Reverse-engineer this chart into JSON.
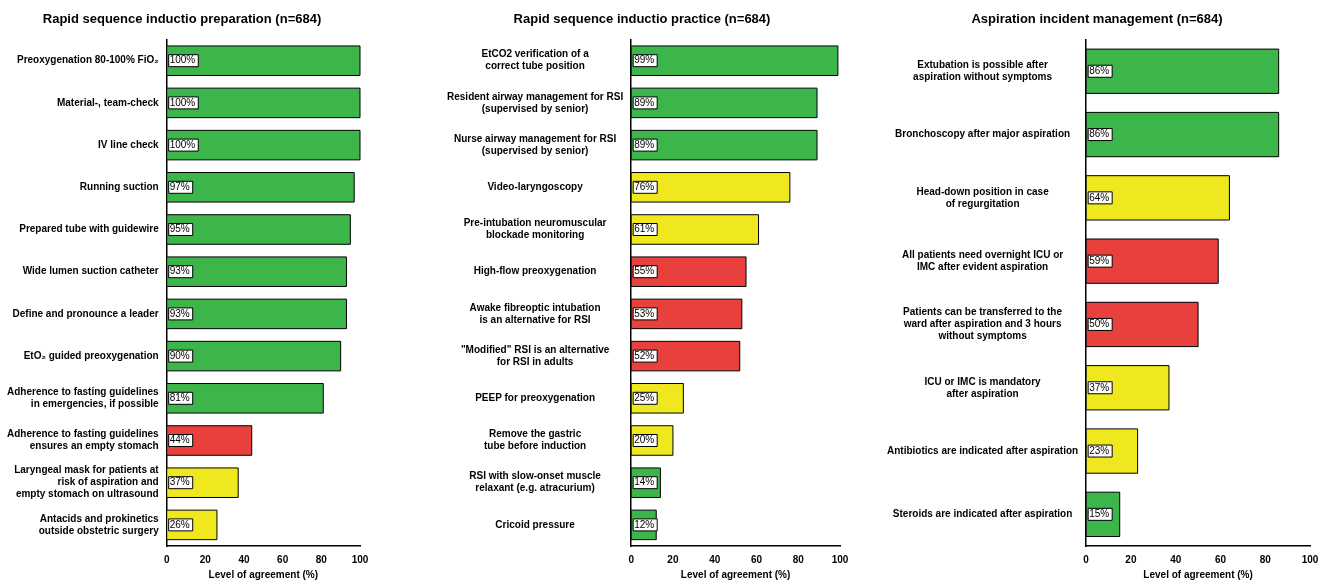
{
  "chart_data": [
    {
      "type": "bar",
      "orientation": "horizontal",
      "title": "Rapid sequence inductio preparation (n=684)",
      "xlabel": "Level of agreement (%)",
      "xlim": [
        0,
        100
      ],
      "xticks": [
        0,
        20,
        40,
        60,
        80,
        100
      ],
      "grid": false,
      "legend": false,
      "categories": [
        "Preoxygenation 80-100% FiO₂",
        "Material-, team-check",
        "IV line check",
        "Running suction",
        "Prepared tube with guidewire",
        "Wide lumen suction catheter",
        "Define and pronounce a leader",
        "EtO₂ guided preoxygenation",
        "Adherence to fasting guidelines\nin emergencies, if possible",
        "Adherence to fasting guidelines\nensures an empty stomach",
        "Laryngeal mask for patients at\nrisk of aspiration and\nempty stomach on ultrasound",
        "Antacids and prokinetics\noutside obstetric surgery"
      ],
      "values": [
        100,
        100,
        100,
        97,
        95,
        93,
        93,
        90,
        81,
        44,
        37,
        26
      ],
      "value_labels": [
        "100%",
        "100%",
        "100%",
        "97%",
        "95%",
        "93%",
        "93%",
        "90%",
        "81%",
        "44%",
        "37%",
        "26%"
      ],
      "colors": [
        "#3cb54a",
        "#3cb54a",
        "#3cb54a",
        "#3cb54a",
        "#3cb54a",
        "#3cb54a",
        "#3cb54a",
        "#3cb54a",
        "#3cb54a",
        "#e8403c",
        "#f0e81e",
        "#f0e81e"
      ]
    },
    {
      "type": "bar",
      "orientation": "horizontal",
      "title": "Rapid sequence inductio practice (n=684)",
      "xlabel": "Level of agreement (%)",
      "xlim": [
        0,
        100
      ],
      "xticks": [
        0,
        20,
        40,
        60,
        80,
        100
      ],
      "grid": false,
      "legend": false,
      "categories": [
        "EtCO2 verification of a\ncorrect tube position",
        "Resident airway management for RSI\n(supervised by senior)",
        "Nurse airway management for RSI\n(supervised by senior)",
        "Video-laryngoscopy",
        "Pre-intubation neuromuscular\nblockade monitoring",
        "High-flow preoxygenation",
        "Awake fibreoptic intubation\nis an alternative for RSI",
        "\"Modified\" RSI is an alternative\nfor RSI in adults",
        "PEEP for preoxygenation",
        "Remove the gastric\ntube before induction",
        "RSI with slow-onset muscle\nrelaxant (e.g. atracurium)",
        "Cricoid pressure"
      ],
      "values": [
        99,
        89,
        89,
        76,
        61,
        55,
        53,
        52,
        25,
        20,
        14,
        12
      ],
      "value_labels": [
        "99%",
        "89%",
        "89%",
        "76%",
        "61%",
        "55%",
        "53%",
        "52%",
        "25%",
        "20%",
        "14%",
        "12%"
      ],
      "colors": [
        "#3cb54a",
        "#3cb54a",
        "#3cb54a",
        "#f0e81e",
        "#f0e81e",
        "#e8403c",
        "#e8403c",
        "#e8403c",
        "#f0e81e",
        "#f0e81e",
        "#3cb54a",
        "#3cb54a"
      ]
    },
    {
      "type": "bar",
      "orientation": "horizontal",
      "title": "Aspiration incident management (n=684)",
      "xlabel": "Level of agreement (%)",
      "xlim": [
        0,
        100
      ],
      "xticks": [
        0,
        20,
        40,
        60,
        80,
        100
      ],
      "grid": false,
      "legend": false,
      "categories": [
        "Extubation is possible after\naspiration without symptoms",
        "Bronchoscopy after major aspiration",
        "Head-down position in case\nof regurgitation",
        "All patients need overnight ICU or\nIMC after evident aspiration",
        "Patients can be transferred to the\nward after aspiration and 3 hours\nwithout symptoms",
        "ICU or IMC is mandatory\nafter aspiration",
        "Antibiotics are indicated after aspiration",
        "Steroids are indicated after aspiration"
      ],
      "values": [
        86,
        86,
        64,
        59,
        50,
        37,
        23,
        15
      ],
      "value_labels": [
        "86%",
        "86%",
        "64%",
        "59%",
        "50%",
        "37%",
        "23%",
        "15%"
      ],
      "colors": [
        "#3cb54a",
        "#3cb54a",
        "#f0e81e",
        "#e8403c",
        "#e8403c",
        "#f0e81e",
        "#f0e81e",
        "#3cb54a"
      ]
    }
  ]
}
